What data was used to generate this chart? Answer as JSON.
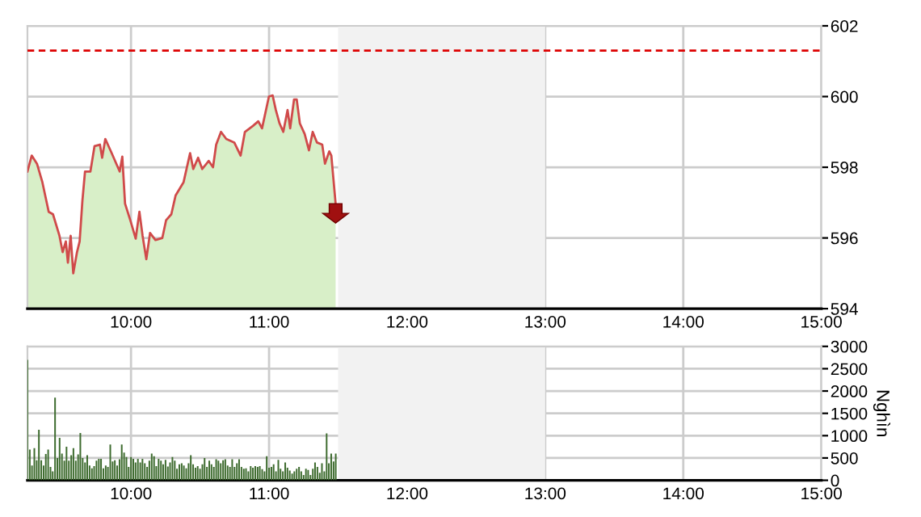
{
  "chart_data": [
    {
      "type": "area",
      "xlim": [
        9.25,
        15
      ],
      "ylim": [
        594,
        602
      ],
      "yticks": [
        594,
        596,
        598,
        600,
        602
      ],
      "xticks": [
        {
          "value": 10,
          "label": "10:00"
        },
        {
          "value": 11,
          "label": "11:00"
        },
        {
          "value": 12,
          "label": "12:00"
        },
        {
          "value": 13,
          "label": "13:00"
        },
        {
          "value": 14,
          "label": "14:00"
        },
        {
          "value": 15,
          "label": "15:00"
        }
      ],
      "grid": true,
      "bands": [
        {
          "axis": "x",
          "from": 11.5,
          "to": 13,
          "color": "#f2f2f2"
        }
      ],
      "ref_lines": [
        {
          "axis": "y",
          "value": 601.3,
          "color": "#dd0000",
          "line_style": "dashed"
        }
      ],
      "series": [
        {
          "color": "#d04a4a",
          "x": [
            9.25,
            9.281,
            9.319,
            9.358,
            9.404,
            9.435,
            9.482,
            9.505,
            9.528,
            9.543,
            9.563,
            9.582,
            9.609,
            9.628,
            9.648,
            9.667,
            9.706,
            9.736,
            9.775,
            9.791,
            9.814,
            9.86,
            9.918,
            9.937,
            9.957,
            9.995,
            10.034,
            10.061,
            10.084,
            10.111,
            10.138,
            10.177,
            10.227,
            10.254,
            10.292,
            10.323,
            10.381,
            10.428,
            10.451,
            10.486,
            10.516,
            10.563,
            10.594,
            10.617,
            10.652,
            10.69,
            10.748,
            10.794,
            10.825,
            10.883,
            10.922,
            10.949,
            10.999,
            11.026,
            11.049,
            11.076,
            11.103,
            11.134,
            11.153,
            11.181,
            11.2,
            11.223,
            11.258,
            11.289,
            11.316,
            11.347,
            11.385,
            11.405,
            11.436,
            11.451,
            11.482
          ],
          "values": [
            597.88,
            598.33,
            598.1,
            597.58,
            596.74,
            596.67,
            596.06,
            595.6,
            595.9,
            595.3,
            596.06,
            595.0,
            595.6,
            595.9,
            597.05,
            597.88,
            597.88,
            598.6,
            598.64,
            598.27,
            598.8,
            598.4,
            597.88,
            598.3,
            596.97,
            596.5,
            595.98,
            596.74,
            596.06,
            595.4,
            596.14,
            595.94,
            596.0,
            596.5,
            596.67,
            597.2,
            597.58,
            598.4,
            597.95,
            598.27,
            597.95,
            598.18,
            598.0,
            598.64,
            599.0,
            598.8,
            598.7,
            598.33,
            599.0,
            599.17,
            599.3,
            599.1,
            600.0,
            600.03,
            599.62,
            599.24,
            599.0,
            599.62,
            599.1,
            599.92,
            599.92,
            599.24,
            598.94,
            598.48,
            599.0,
            598.7,
            598.64,
            598.1,
            598.45,
            598.33,
            596.97
          ]
        }
      ]
    },
    {
      "type": "bar",
      "xlim": [
        9.25,
        15
      ],
      "ylim": [
        0,
        3000
      ],
      "yticks": [
        0,
        500,
        1000,
        1500,
        2000,
        2500,
        3000
      ],
      "xticks": [
        {
          "value": 10,
          "label": "10:00"
        },
        {
          "value": 11,
          "label": "11:00"
        },
        {
          "value": 12,
          "label": "12:00"
        },
        {
          "value": 13,
          "label": "13:00"
        },
        {
          "value": 14,
          "label": "14:00"
        },
        {
          "value": 15,
          "label": "15:00"
        }
      ],
      "ylabel": "Nghìn",
      "grid": true,
      "bands": [
        {
          "axis": "x",
          "from": 11.5,
          "to": 13,
          "color": "#f2f2f2"
        }
      ],
      "series": [
        {
          "color": "#3d6b2e",
          "x": [
            9.25,
            9.267,
            9.283,
            9.3,
            9.317,
            9.333,
            9.35,
            9.367,
            9.383,
            9.4,
            9.417,
            9.433,
            9.45,
            9.467,
            9.483,
            9.5,
            9.517,
            9.533,
            9.55,
            9.567,
            9.583,
            9.6,
            9.617,
            9.633,
            9.65,
            9.667,
            9.683,
            9.7,
            9.717,
            9.733,
            9.75,
            9.767,
            9.783,
            9.8,
            9.817,
            9.833,
            9.85,
            9.867,
            9.883,
            9.9,
            9.917,
            9.933,
            9.95,
            9.967,
            9.983,
            10,
            10.017,
            10.033,
            10.05,
            10.067,
            10.083,
            10.1,
            10.117,
            10.133,
            10.15,
            10.167,
            10.183,
            10.2,
            10.217,
            10.233,
            10.25,
            10.267,
            10.283,
            10.3,
            10.317,
            10.333,
            10.35,
            10.367,
            10.383,
            10.4,
            10.417,
            10.433,
            10.45,
            10.467,
            10.483,
            10.5,
            10.517,
            10.533,
            10.55,
            10.567,
            10.583,
            10.6,
            10.617,
            10.633,
            10.65,
            10.667,
            10.683,
            10.7,
            10.717,
            10.733,
            10.75,
            10.767,
            10.783,
            10.8,
            10.817,
            10.833,
            10.85,
            10.867,
            10.883,
            10.9,
            10.917,
            10.933,
            10.95,
            10.967,
            10.983,
            11,
            11.017,
            11.033,
            11.05,
            11.067,
            11.083,
            11.1,
            11.117,
            11.133,
            11.15,
            11.167,
            11.183,
            11.2,
            11.217,
            11.233,
            11.25,
            11.267,
            11.283,
            11.3,
            11.317,
            11.333,
            11.35,
            11.367,
            11.383,
            11.4,
            11.417,
            11.433,
            11.45,
            11.467,
            11.483
          ],
          "values": [
            2700,
            690,
            330,
            720,
            450,
            1130,
            450,
            330,
            590,
            690,
            300,
            200,
            1850,
            500,
            950,
            600,
            440,
            750,
            440,
            560,
            720,
            440,
            580,
            1060,
            500,
            400,
            560,
            330,
            270,
            320,
            440,
            480,
            480,
            270,
            330,
            300,
            800,
            420,
            450,
            330,
            470,
            800,
            620,
            520,
            300,
            520,
            480,
            400,
            480,
            400,
            480,
            380,
            300,
            440,
            600,
            540,
            320,
            480,
            440,
            360,
            460,
            310,
            400,
            520,
            440,
            260,
            360,
            380,
            330,
            270,
            380,
            560,
            360,
            280,
            320,
            260,
            360,
            500,
            300,
            440,
            360,
            300,
            470,
            440,
            380,
            450,
            470,
            330,
            300,
            470,
            300,
            380,
            470,
            300,
            260,
            270,
            200,
            320,
            280,
            320,
            300,
            320,
            250,
            200,
            540,
            280,
            300,
            360,
            200,
            460,
            260,
            200,
            400,
            280,
            220,
            150,
            200,
            260,
            300,
            200,
            120,
            260,
            230,
            120,
            260,
            400,
            300,
            170,
            380,
            200,
            1050,
            380,
            600,
            420,
            600
          ]
        }
      ]
    }
  ]
}
